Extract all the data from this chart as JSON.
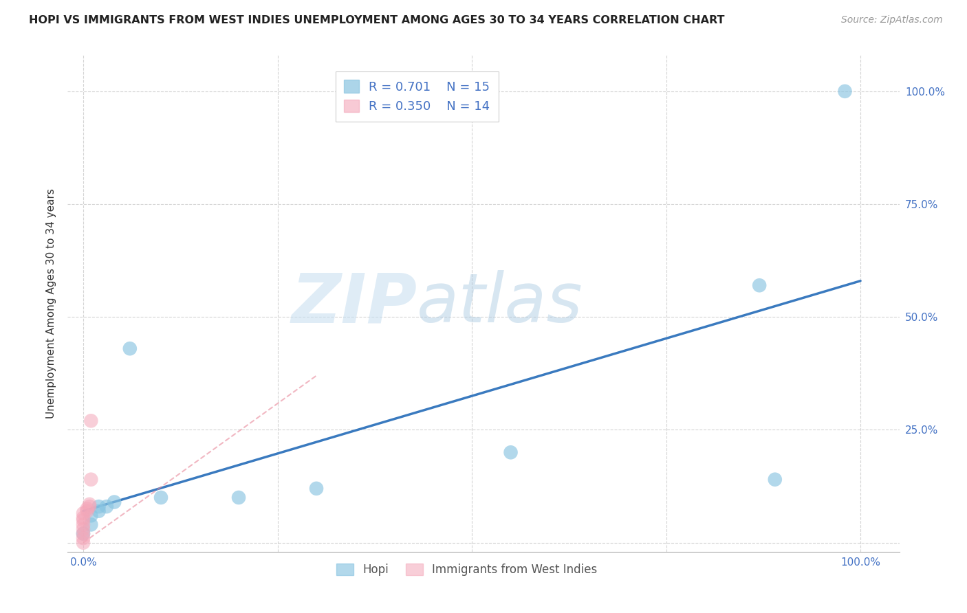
{
  "title": "HOPI VS IMMIGRANTS FROM WEST INDIES UNEMPLOYMENT AMONG AGES 30 TO 34 YEARS CORRELATION CHART",
  "source": "Source: ZipAtlas.com",
  "ylabel_label": "Unemployment Among Ages 30 to 34 years",
  "xlim": [
    -0.02,
    1.05
  ],
  "ylim": [
    -0.02,
    1.08
  ],
  "xticks": [
    0.0,
    0.25,
    0.5,
    0.75,
    1.0
  ],
  "yticks": [
    0.0,
    0.25,
    0.5,
    0.75,
    1.0
  ],
  "xtick_labels": [
    "0.0%",
    "",
    "",
    "",
    "100.0%"
  ],
  "ytick_labels_right": [
    "",
    "25.0%",
    "50.0%",
    "75.0%",
    "100.0%"
  ],
  "background_color": "#ffffff",
  "grid_color": "#d0d0d0",
  "watermark_zip": "ZIP",
  "watermark_atlas": "atlas",
  "hopi_color": "#89c4e1",
  "pink_color": "#f4a7b9",
  "blue_line_color": "#3a7abf",
  "pink_line_color": "#e8889a",
  "hopi_R": 0.701,
  "hopi_N": 15,
  "pink_R": 0.35,
  "pink_N": 14,
  "hopi_points": [
    [
      0.0,
      0.02
    ],
    [
      0.01,
      0.04
    ],
    [
      0.01,
      0.06
    ],
    [
      0.02,
      0.07
    ],
    [
      0.02,
      0.08
    ],
    [
      0.03,
      0.08
    ],
    [
      0.04,
      0.09
    ],
    [
      0.06,
      0.43
    ],
    [
      0.1,
      0.1
    ],
    [
      0.2,
      0.1
    ],
    [
      0.3,
      0.12
    ],
    [
      0.55,
      0.2
    ],
    [
      0.87,
      0.57
    ],
    [
      0.89,
      0.14
    ],
    [
      0.98,
      1.0
    ]
  ],
  "pink_points": [
    [
      0.0,
      0.0
    ],
    [
      0.0,
      0.01
    ],
    [
      0.0,
      0.02
    ],
    [
      0.0,
      0.03
    ],
    [
      0.0,
      0.04
    ],
    [
      0.0,
      0.05
    ],
    [
      0.0,
      0.055
    ],
    [
      0.0,
      0.065
    ],
    [
      0.005,
      0.07
    ],
    [
      0.005,
      0.075
    ],
    [
      0.008,
      0.08
    ],
    [
      0.008,
      0.085
    ],
    [
      0.01,
      0.14
    ],
    [
      0.01,
      0.27
    ]
  ],
  "blue_line_x": [
    0.0,
    1.0
  ],
  "blue_line_y": [
    0.07,
    0.58
  ],
  "pink_line_x": [
    0.0,
    0.3
  ],
  "pink_line_y": [
    0.0,
    0.37
  ],
  "legend_labels": [
    "Hopi",
    "Immigrants from West Indies"
  ],
  "title_fontsize": 11.5,
  "axis_label_fontsize": 11,
  "tick_fontsize": 11,
  "legend_fontsize": 13,
  "source_fontsize": 10,
  "tick_color": "#4472c4"
}
